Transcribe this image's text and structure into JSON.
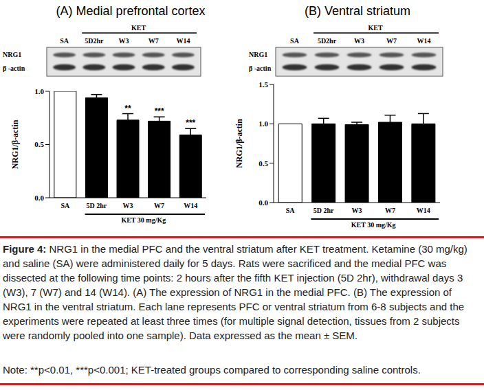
{
  "chart_data": [
    {
      "type": "bar",
      "title": "(A) Medial prefrontal cortex",
      "categories": [
        "SA",
        "5D 2hr",
        "W3",
        "W7",
        "W14"
      ],
      "values": [
        1.0,
        0.94,
        0.73,
        0.72,
        0.59
      ],
      "errors": [
        0,
        0.03,
        0.06,
        0.04,
        0.06
      ],
      "significance": [
        null,
        null,
        "**",
        "***",
        "***"
      ],
      "colors": [
        "#ffffff",
        "#000000",
        "#000000",
        "#000000",
        "#000000"
      ],
      "ylabel": "NRG1/β-actin",
      "x_group_label": "KET 30 mg/Kg",
      "ylim": [
        0,
        1.0
      ],
      "yticks": [
        {
          "value": 0,
          "label": "0.0"
        },
        {
          "value": 0.5,
          "label": "0.5"
        },
        {
          "value": 1.0,
          "label": "1.0"
        }
      ],
      "blot": {
        "group_label": "KET",
        "lanes": [
          "SA",
          "5D2hr",
          "W3",
          "W7",
          "W14"
        ],
        "rows": [
          "NRG1",
          "β -actin"
        ]
      }
    },
    {
      "type": "bar",
      "title": "(B) Ventral striatum",
      "categories": [
        "SA",
        "5D 2hr",
        "W3",
        "W7",
        "W14"
      ],
      "values": [
        1.0,
        1.0,
        0.99,
        1.02,
        1.0
      ],
      "errors": [
        0,
        0.07,
        0.03,
        0.09,
        0.13
      ],
      "significance": [
        null,
        null,
        null,
        null,
        null
      ],
      "colors": [
        "#ffffff",
        "#000000",
        "#000000",
        "#000000",
        "#000000"
      ],
      "ylabel": "NRG1/β-actin",
      "x_group_label": "KET 30 mg/Kg",
      "ylim": [
        0,
        1.5
      ],
      "yticks": [
        {
          "value": 0,
          "label": "0.0"
        },
        {
          "value": 0.5,
          "label": "0.5"
        },
        {
          "value": 1.0,
          "label": "1.0"
        },
        {
          "value": 1.5,
          "label": "1.5"
        }
      ],
      "blot": {
        "group_label": "KET",
        "lanes": [
          "SA",
          "5D2hr",
          "W3",
          "W7",
          "W14"
        ],
        "rows": [
          "NRG1",
          "β -actin"
        ]
      }
    }
  ],
  "caption": {
    "label": "Figure 4:",
    "text": "NRG1 in the medial PFC and the ventral striatum after KET treatment. Ketamine (30 mg/kg) and saline (SA) were administered daily for 5 days. Rats were sacrificed and the medial PFC was dissected at the following time points: 2 hours after the fifth KET injection (5D 2hr), withdrawal days 3 (W3), 7 (W7) and 14 (W14). (A) The expression of NRG1 in the medial PFC. (B) The expression of NRG1 in the ventral striatum. Each lane represents PFC or ventral striatum from 6-8 subjects and the experiments were repeated at least three times (for multiple signal detection, tissues from 2 subjects were randomly pooled into one sample). Data expressed as the mean ± SEM.",
    "note": "Note: **p<0.01, ***p<0.001; KET-treated groups compared to corresponding saline controls."
  }
}
